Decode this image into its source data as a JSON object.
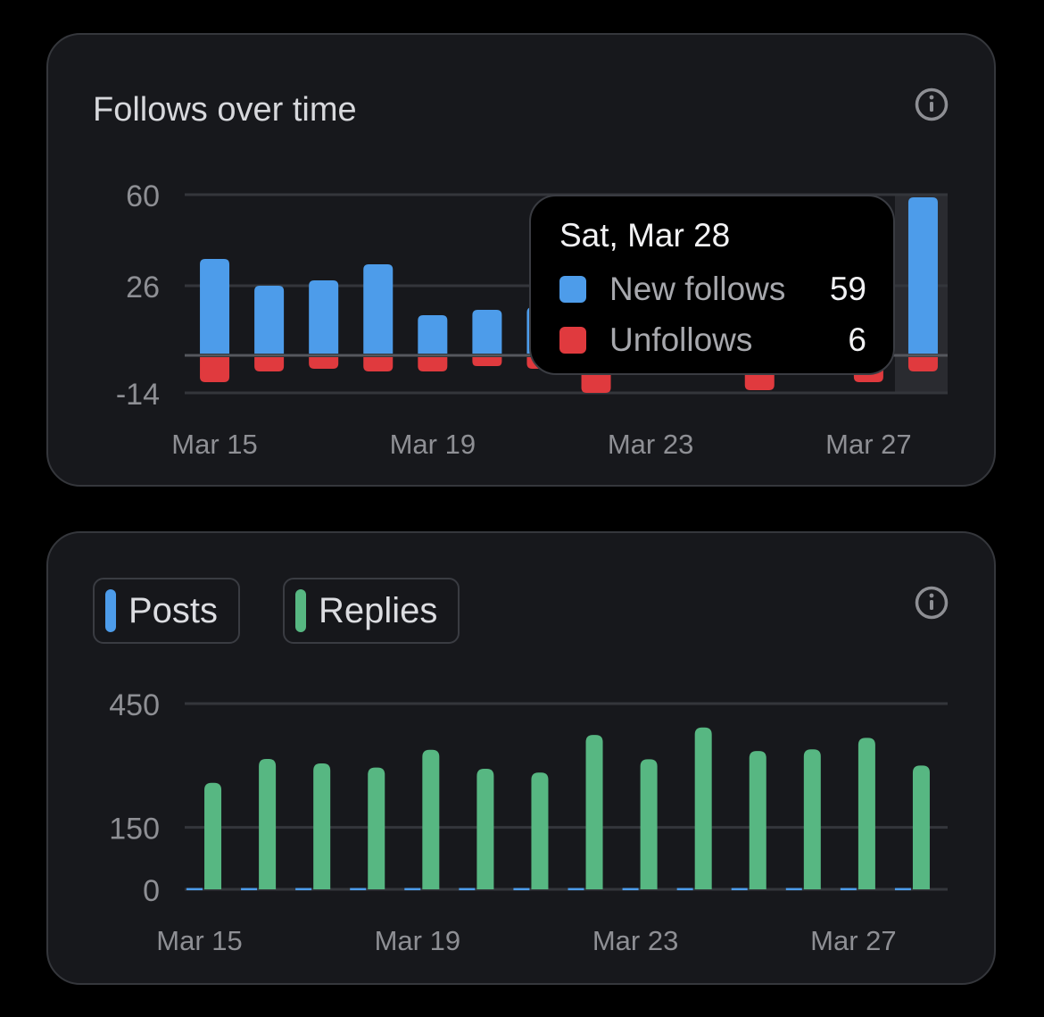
{
  "colors": {
    "new_follows": "#4d9cea",
    "unfollows": "#e03a3e",
    "posts": "#4d9cea",
    "replies": "#57b782",
    "grid": "#34363b",
    "axis_text": "#8e8f94"
  },
  "follows_card": {
    "title": "Follows over time",
    "info_icon": "info-icon"
  },
  "activity_card": {
    "legend": [
      {
        "label": "Posts",
        "color": "#4d9cea"
      },
      {
        "label": "Replies",
        "color": "#57b782"
      }
    ],
    "info_icon": "info-icon"
  },
  "tooltip": {
    "date": "Sat, Mar 28",
    "rows": [
      {
        "label": "New follows",
        "value": "59",
        "color": "#4d9cea"
      },
      {
        "label": "Unfollows",
        "value": "6",
        "color": "#e03a3e"
      }
    ]
  },
  "chart_data": [
    {
      "type": "bar",
      "title": "Follows over time",
      "x": [
        "Mar 15",
        "Mar 16",
        "Mar 17",
        "Mar 18",
        "Mar 19",
        "Mar 20",
        "Mar 21",
        "Mar 22",
        "Mar 23",
        "Mar 24",
        "Mar 25",
        "Mar 26",
        "Mar 27",
        "Mar 28"
      ],
      "x_tick_labels": [
        "Mar 15",
        "Mar 19",
        "Mar 23",
        "Mar 27"
      ],
      "y_ticks": [
        60,
        26,
        -14
      ],
      "ylim": [
        -14,
        60
      ],
      "grid": true,
      "highlighted": "Mar 28",
      "series": [
        {
          "name": "New follows",
          "values": [
            36,
            26,
            28,
            34,
            15,
            17,
            18,
            20,
            22,
            60,
            21,
            22,
            24,
            59
          ],
          "color": "#4d9cea"
        },
        {
          "name": "Unfollows",
          "values": [
            -10,
            -6,
            -5,
            -6,
            -6,
            -4,
            -5,
            -14,
            -6,
            -7,
            -13,
            -6,
            -10,
            -6
          ],
          "color": "#e03a3e"
        }
      ]
    },
    {
      "type": "bar",
      "x": [
        "Mar 15",
        "Mar 16",
        "Mar 17",
        "Mar 18",
        "Mar 19",
        "Mar 20",
        "Mar 21",
        "Mar 22",
        "Mar 23",
        "Mar 24",
        "Mar 25",
        "Mar 26",
        "Mar 27",
        "Mar 28"
      ],
      "x_tick_labels": [
        "Mar 15",
        "Mar 19",
        "Mar 23",
        "Mar 27"
      ],
      "y_ticks": [
        450,
        150,
        0
      ],
      "ylim": [
        0,
        450
      ],
      "grid": true,
      "legend": "top-left",
      "series": [
        {
          "name": "Posts",
          "values": [
            1,
            1,
            1,
            1,
            1,
            1,
            1,
            1,
            1,
            1,
            1,
            1,
            1,
            1
          ],
          "color": "#4d9cea"
        },
        {
          "name": "Replies",
          "values": [
            258,
            316,
            305,
            295,
            338,
            292,
            283,
            374,
            315,
            392,
            335,
            339,
            367,
            300
          ],
          "color": "#57b782"
        }
      ]
    }
  ]
}
